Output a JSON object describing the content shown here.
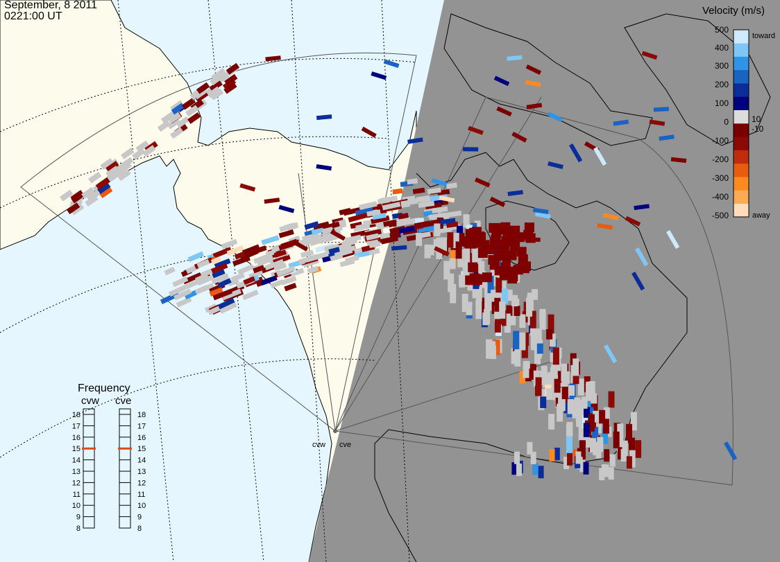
{
  "header": {
    "date": "September, 8 2011",
    "time": "0221:00 UT"
  },
  "colors": {
    "ocean": "#e6f6fe",
    "land_day": "#fcfbec",
    "night": "#939393",
    "ground_scatter": "#c8c8c8",
    "coast": "#000000",
    "grid": "#000000"
  },
  "velocity_legend": {
    "title": "Velocity (m/s)",
    "ticks": [
      "500",
      "400",
      "300",
      "200",
      "100",
      "10",
      "0",
      "-10",
      "-100",
      "-200",
      "-300",
      "-400",
      "-500"
    ],
    "toward_label": "toward",
    "away_label": "away",
    "colors": [
      "#fddcb9",
      "#fdaa55",
      "#fb8a21",
      "#e85c0f",
      "#c02d0c",
      "#8a0a06",
      "#780000",
      "#dcdcdc",
      "#00007f",
      "#0a2d9a",
      "#1a63c2",
      "#2f94e6",
      "#7ec6f5",
      "#cde9fb"
    ]
  },
  "frequency_legend": {
    "title": "Frequency",
    "radars": [
      {
        "code": "cvw",
        "freq": 15
      },
      {
        "code": "cve",
        "freq": 15
      }
    ],
    "ticks": [
      "18",
      "17",
      "16",
      "15",
      "14",
      "13",
      "12",
      "11",
      "10",
      "9",
      "8"
    ],
    "marker_color": "#d94a1c"
  },
  "radar_sites": {
    "labels": [
      "cvw",
      "cve"
    ]
  }
}
